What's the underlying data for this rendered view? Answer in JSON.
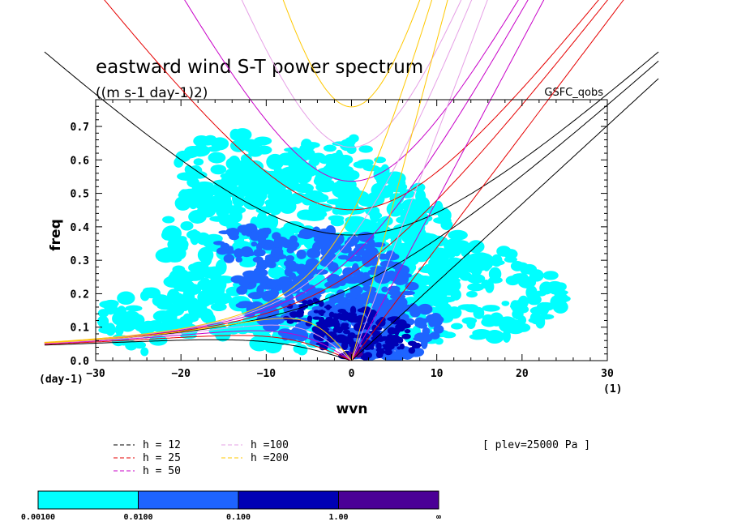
{
  "chart_data": {
    "type": "heatmap",
    "title": "eastward wind S-T power spectrum",
    "units": "((m s-1 day-1)2)",
    "model": "GSFC_qobs",
    "xlabel": "wvn",
    "ylabel": "freq",
    "x_unit": "(1)",
    "y_unit": "(day-1)",
    "xlim": [
      -30,
      30
    ],
    "ylim": [
      0,
      0.78
    ],
    "x_ticks": [
      -30,
      -20,
      -10,
      0,
      10,
      20,
      30
    ],
    "y_ticks": [
      0,
      0.1,
      0.2,
      0.3,
      0.4,
      0.5,
      0.6,
      0.7
    ],
    "x_tick_labels": [
      "−30",
      "−20",
      "−10",
      "0",
      "10",
      "20",
      "30"
    ],
    "y_tick_labels": [
      "0.0",
      "0.1",
      "0.2",
      "0.3",
      "0.4",
      "0.5",
      "0.6",
      "0.7"
    ],
    "annotation": "[ plev=25000 Pa ]",
    "colorbar": {
      "colors": [
        "#00ffff",
        "#1e64ff",
        "#0000b4",
        "#4b0096"
      ],
      "labels": [
        "0.00100",
        "0.0100",
        "0.100",
        "1.00",
        "∞"
      ]
    },
    "dispersion_curves": [
      {
        "label": "h = 12",
        "h": 12,
        "color": "#000000"
      },
      {
        "label": "h = 25",
        "h": 25,
        "color": "#e60000"
      },
      {
        "label": "h = 50",
        "h": 50,
        "color": "#c800c8"
      },
      {
        "label": "h =100",
        "h": 100,
        "color": "#e6a0e6"
      },
      {
        "label": "h =200",
        "h": 200,
        "color": "#ffc800"
      }
    ]
  }
}
